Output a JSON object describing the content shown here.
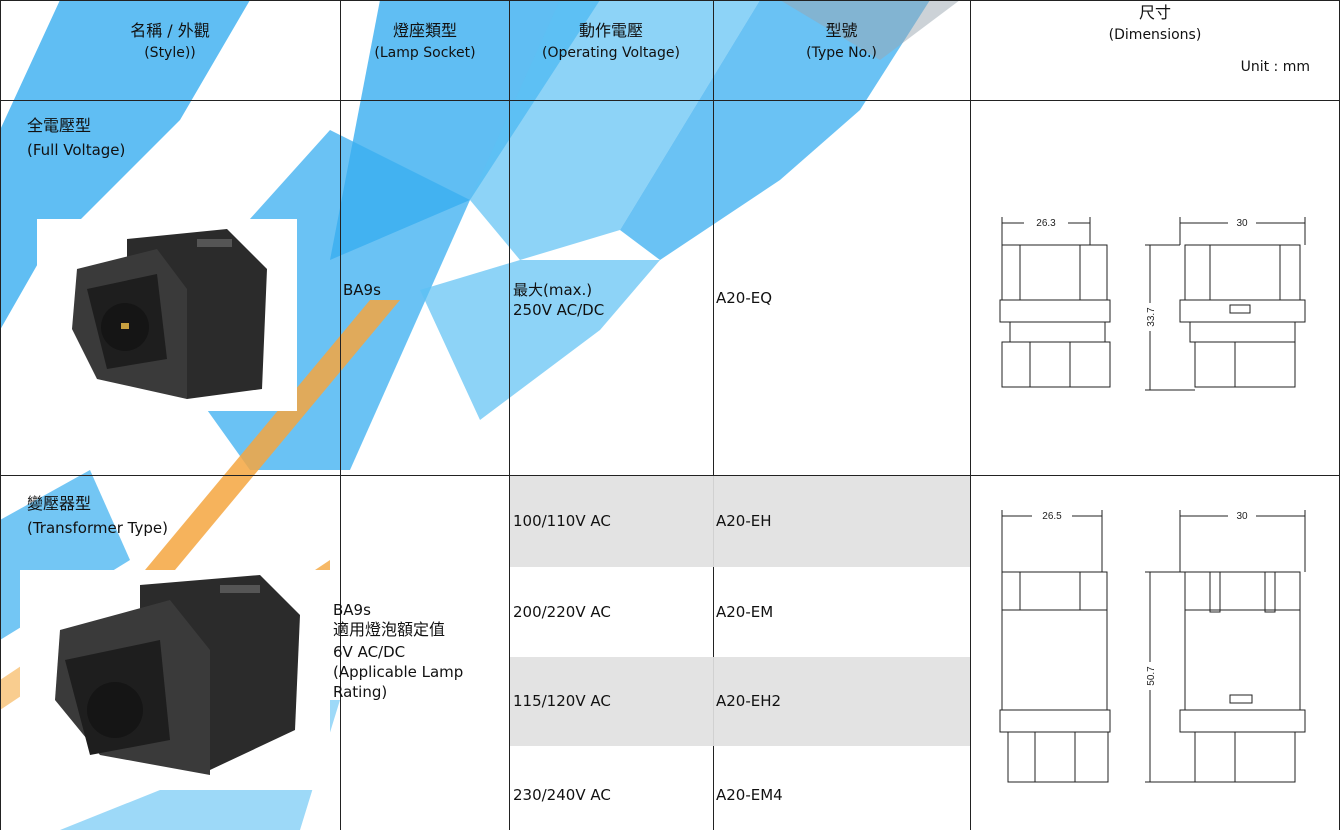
{
  "table": {
    "header": [
      {
        "title": "名稱 / 外觀",
        "subtitle": "(Style))"
      },
      {
        "title": "燈座類型",
        "subtitle": "(Lamp Socket)"
      },
      {
        "title": "動作電壓",
        "subtitle": "(Operating Voltage)"
      },
      {
        "title": "型號",
        "subtitle": "(Type No.)"
      },
      {
        "title": "尺寸",
        "subtitle": "(Dimensions)",
        "unit": "Unit : mm"
      }
    ],
    "rows": [
      {
        "style": [
          "全電壓型",
          "(Full Voltage)"
        ],
        "socket": [
          "BA9s"
        ],
        "variants": [
          {
            "voltage": [
              "最大(max.)",
              "250V AC/DC"
            ],
            "type": "A20-EQ"
          }
        ],
        "dimensions": {
          "width": 26.3,
          "depth": 30,
          "height": 33.7
        }
      },
      {
        "style": [
          "變壓器型",
          "(Transformer Type)"
        ],
        "socket": [
          "BA9s",
          "適用燈泡額定值",
          "6V AC/DC",
          "(Applicable Lamp",
          "Rating)"
        ],
        "variants": [
          {
            "voltage": [
              "100/110V AC"
            ],
            "type": "A20-EH"
          },
          {
            "voltage": [
              "200/220V AC"
            ],
            "type": "A20-EM"
          },
          {
            "voltage": [
              "115/120V AC"
            ],
            "type": "A20-EH2"
          },
          {
            "voltage": [
              "230/240V AC"
            ],
            "type": "A20-EM4"
          }
        ],
        "dimensions": {
          "width": 26.5,
          "depth": 30,
          "height": 50.7
        }
      }
    ]
  }
}
